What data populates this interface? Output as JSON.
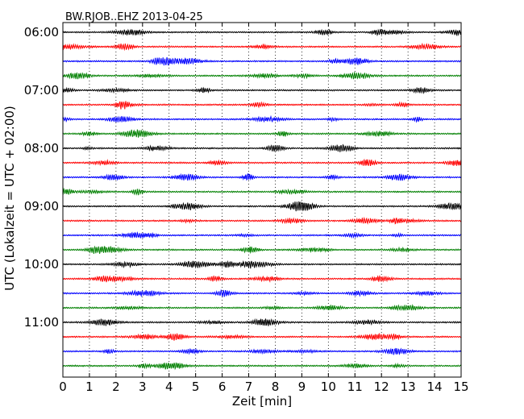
{
  "chart_data": {
    "type": "line",
    "title": "BW.RJOB..EHZ 2013-04-25",
    "xlabel": "Zeit  [min]",
    "ylabel": "UTC (Lokalzeit = UTC + 02:00)",
    "xlim": [
      0,
      15
    ],
    "x_ticks": [
      0,
      1,
      2,
      3,
      4,
      5,
      6,
      7,
      8,
      9,
      10,
      11,
      12,
      13,
      14,
      15
    ],
    "x_tick_labels": [
      "0",
      "1",
      "2",
      "3",
      "4",
      "5",
      "6",
      "7",
      "8",
      "9",
      "10",
      "11",
      "12",
      "13",
      "14",
      "15"
    ],
    "y_tick_labels": [
      "06:00",
      "07:00",
      "08:00",
      "09:00",
      "10:00",
      "11:00"
    ],
    "grid": "vertical-dotted",
    "trace_colors": [
      "#000000",
      "#ff0000",
      "#0000ff",
      "#008000"
    ],
    "trace_count": 24,
    "trace_interval_minutes": 15,
    "start_time": "06:00"
  }
}
